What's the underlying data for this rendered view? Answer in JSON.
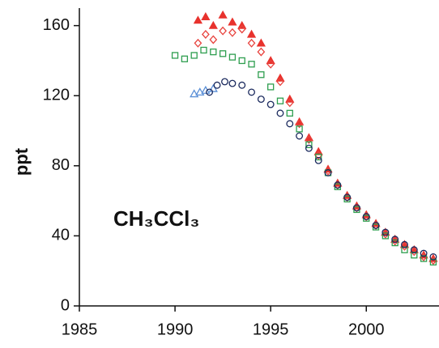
{
  "chart_data": {
    "type": "scatter",
    "ylabel": "ppt",
    "annotation": "CH₃CCl₃",
    "xlim": [
      1985,
      2003.8
    ],
    "xticks": [
      1985,
      1990,
      1995,
      2000
    ],
    "ylim": [
      0,
      170
    ],
    "yticks": [
      0,
      40,
      80,
      120,
      160
    ],
    "series": [
      {
        "color": "#e8322d",
        "marker": "triangle",
        "filled": true,
        "x": [
          1991.2,
          1991.6,
          1992,
          1992.5,
          1993,
          1993.5,
          1994,
          1994.5,
          1995,
          1995.5,
          1996,
          1996.5,
          1997,
          1997.5,
          1998,
          1998.5,
          1999,
          1999.5,
          2000,
          2000.5,
          2001,
          2001.5,
          2002,
          2002.5,
          2003,
          2003.5
        ],
        "values": [
          163,
          165,
          160,
          166,
          162,
          160,
          155,
          150,
          140,
          130,
          118,
          105,
          96,
          88,
          78,
          70,
          63,
          57,
          52,
          47,
          42,
          38,
          35,
          32,
          29,
          27
        ]
      },
      {
        "color": "#e8423d",
        "marker": "diamond",
        "filled": false,
        "x": [
          1991.2,
          1991.6,
          1992,
          1992.5,
          1993,
          1993.5,
          1994,
          1994.5,
          1995,
          1995.5,
          1996,
          1996.5,
          1997,
          1997.5,
          1998,
          1998.5,
          1999,
          1999.5,
          2000,
          2000.5,
          2001,
          2001.5,
          2002,
          2002.5,
          2003,
          2003.5
        ],
        "values": [
          150,
          155,
          152,
          157,
          156,
          158,
          150,
          145,
          138,
          128,
          116,
          104,
          95,
          86,
          77,
          69,
          62,
          56,
          51,
          46,
          41,
          37,
          34,
          31,
          28,
          26
        ]
      },
      {
        "color": "#2e9e4f",
        "marker": "square",
        "filled": false,
        "x": [
          1990,
          1990.5,
          1991,
          1991.5,
          1992,
          1992.5,
          1993,
          1993.5,
          1994,
          1994.5,
          1995,
          1995.5,
          1996,
          1996.5,
          1997,
          1997.5,
          1998,
          1998.5,
          1999,
          1999.5,
          2000,
          2000.5,
          2001,
          2001.5,
          2002,
          2002.5,
          2003,
          2003.5
        ],
        "values": [
          143,
          141,
          143,
          146,
          145,
          144,
          142,
          140,
          138,
          132,
          125,
          117,
          110,
          101,
          92,
          85,
          76,
          68,
          61,
          55,
          50,
          45,
          40,
          36,
          32,
          29,
          27,
          25
        ]
      },
      {
        "color": "#5b8fd6",
        "marker": "triangle",
        "filled": false,
        "x": [
          1991,
          1991.3,
          1991.6,
          1992
        ],
        "values": [
          121,
          122,
          123,
          124
        ]
      },
      {
        "color": "#1b2a5e",
        "marker": "circle",
        "filled": false,
        "x": [
          1991.8,
          1992.2,
          1992.6,
          1993,
          1993.5,
          1994,
          1994.5,
          1995,
          1995.5,
          1996,
          1996.5,
          1997,
          1997.5,
          1998,
          1998.5,
          1999,
          1999.5,
          2000,
          2000.5,
          2001,
          2001.5,
          2002,
          2002.5,
          2003,
          2003.5
        ],
        "values": [
          122,
          126,
          128,
          127,
          126,
          122,
          118,
          115,
          110,
          104,
          97,
          90,
          83,
          76,
          69,
          62,
          56,
          51,
          46,
          42,
          38,
          35,
          32,
          30,
          28
        ]
      }
    ]
  }
}
